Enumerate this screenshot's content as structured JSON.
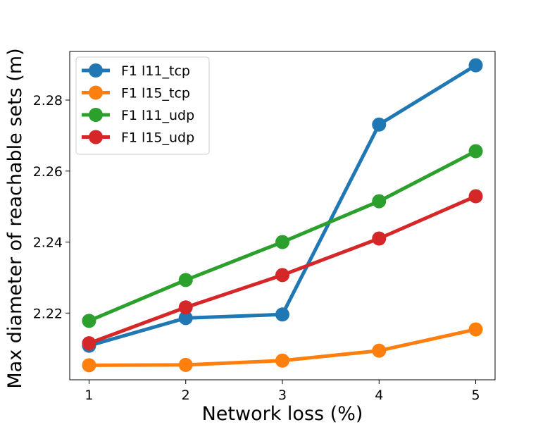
{
  "chart_data": {
    "type": "line",
    "title": "",
    "xlabel": "Network loss (%)",
    "ylabel": "Max diameter of reachable sets (m)",
    "x": [
      1,
      2,
      3,
      4,
      5
    ],
    "xticks": [
      "1",
      "2",
      "3",
      "4",
      "5"
    ],
    "yticks": [
      "2.22",
      "2.24",
      "2.26",
      "2.28"
    ],
    "ylim": [
      2.2012,
      2.2937
    ],
    "xlim": [
      0.8,
      5.2
    ],
    "grid": false,
    "legend_position": "top-left",
    "series": [
      {
        "name": "F1 l11_tcp",
        "color": "#1f77b4",
        "values": [
          2.2108,
          2.2186,
          2.2196,
          2.2731,
          2.2898
        ]
      },
      {
        "name": "F1 l15_tcp",
        "color": "#ff7f0e",
        "values": [
          2.2053,
          2.2054,
          2.2066,
          2.2094,
          2.2154
        ]
      },
      {
        "name": "F1 l11_udp",
        "color": "#2ca02c",
        "values": [
          2.2178,
          2.2293,
          2.24,
          2.2515,
          2.2656
        ]
      },
      {
        "name": "F1 l15_udp",
        "color": "#d62728",
        "values": [
          2.2115,
          2.2216,
          2.2307,
          2.241,
          2.2529
        ]
      }
    ]
  }
}
